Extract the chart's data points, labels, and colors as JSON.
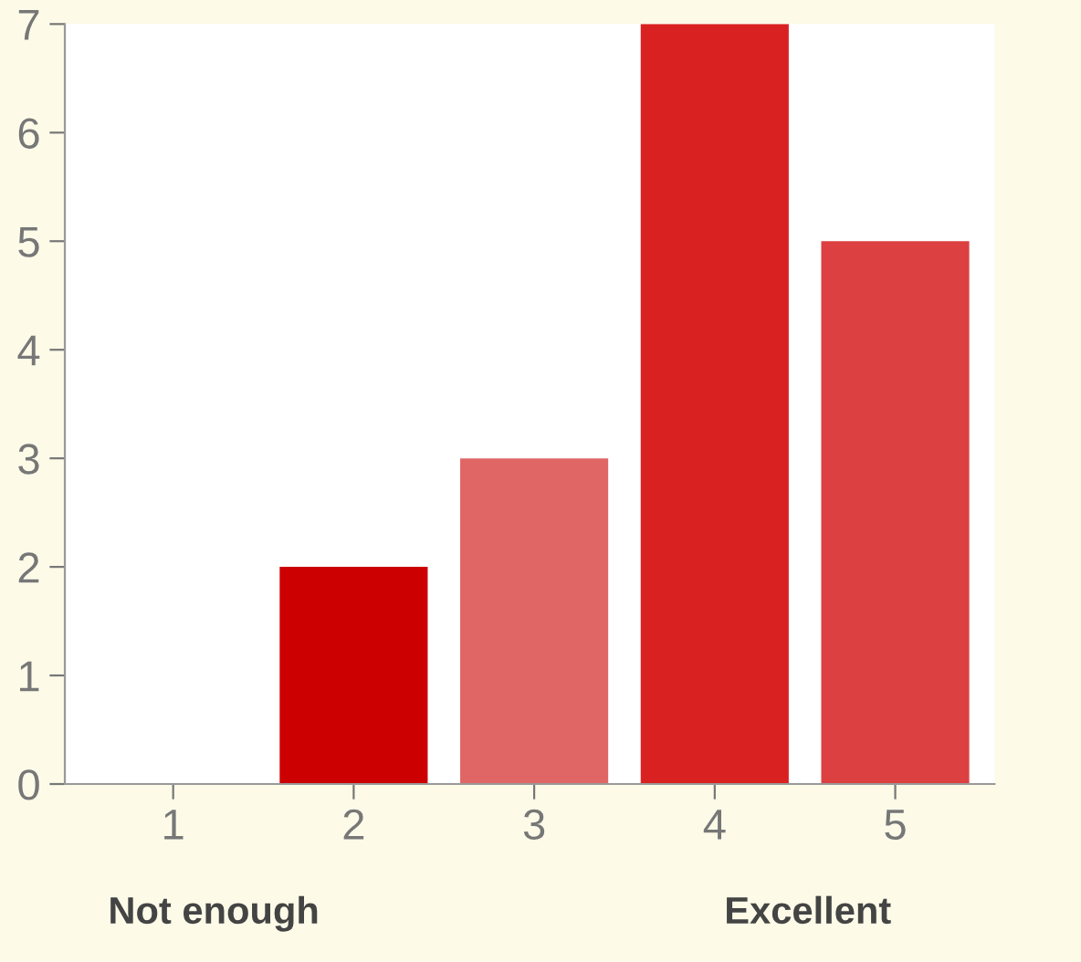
{
  "chart_data": {
    "type": "bar",
    "categories": [
      "1",
      "2",
      "3",
      "4",
      "5"
    ],
    "values": [
      0,
      2,
      3,
      7,
      5
    ],
    "colors": [
      "#cc0000",
      "#cc0000",
      "#e06666",
      "#d92121",
      "#dd4040"
    ],
    "ylim": [
      0,
      7
    ],
    "yticks": [
      0,
      1,
      2,
      3,
      4,
      5,
      6,
      7
    ],
    "grid": false,
    "legend": false,
    "annotations": [
      "Not enough",
      "Excellent"
    ]
  }
}
